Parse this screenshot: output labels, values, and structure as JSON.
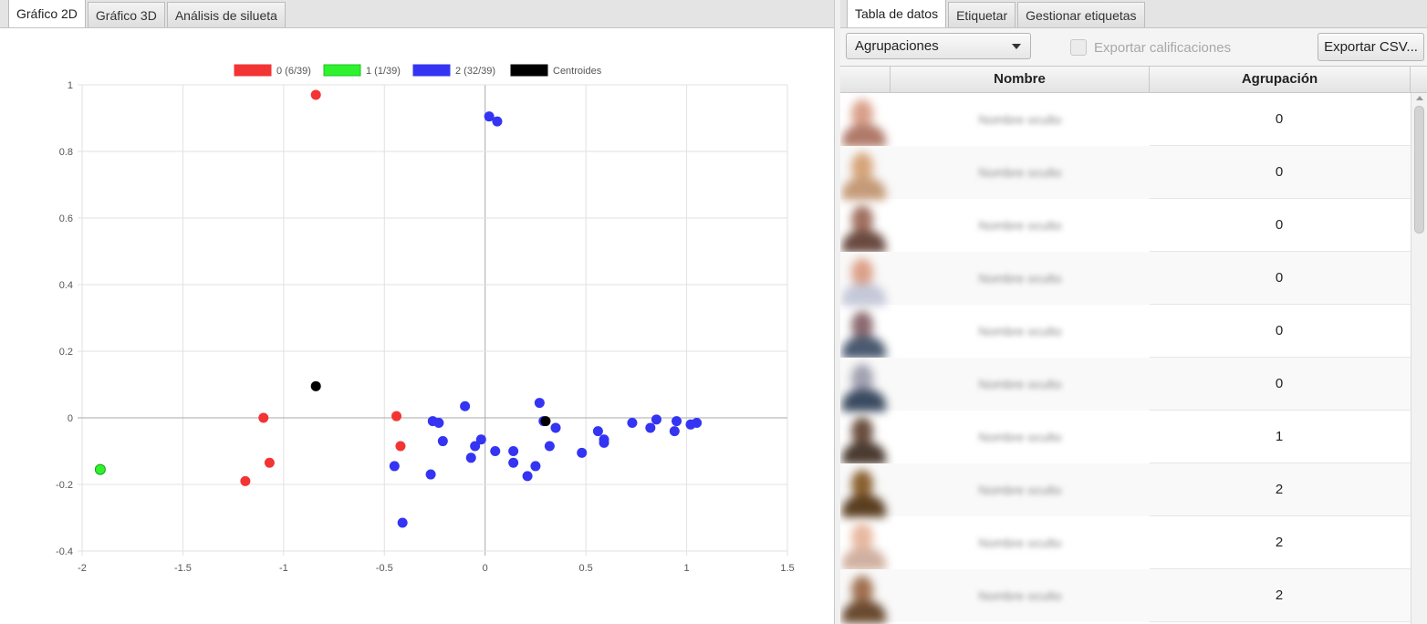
{
  "left_tabs": [
    {
      "label": "Gráfico 2D",
      "active": true
    },
    {
      "label": "Gráfico 3D",
      "active": false
    },
    {
      "label": "Análisis de silueta",
      "active": false
    }
  ],
  "right_tabs": [
    {
      "label": "Tabla de datos",
      "active": true
    },
    {
      "label": "Etiquetar",
      "active": false
    },
    {
      "label": "Gestionar etiquetas",
      "active": false
    }
  ],
  "toolbar": {
    "combo_value": "Agrupaciones",
    "checkbox_label": "Exportar calificaciones",
    "export_button": "Exportar CSV..."
  },
  "table": {
    "columns": [
      "",
      "Nombre",
      "Agrupación"
    ],
    "rows": [
      {
        "name": "Nombre oculto",
        "group": "0"
      },
      {
        "name": "Nombre oculto",
        "group": "0"
      },
      {
        "name": "Nombre oculto",
        "group": "0"
      },
      {
        "name": "Nombre oculto",
        "group": "0"
      },
      {
        "name": "Nombre oculto",
        "group": "0"
      },
      {
        "name": "Nombre oculto",
        "group": "0"
      },
      {
        "name": "Nombre oculto",
        "group": "1"
      },
      {
        "name": "Nombre oculto",
        "group": "2"
      },
      {
        "name": "Nombre oculto",
        "group": "2"
      },
      {
        "name": "Nombre oculto",
        "group": "2"
      }
    ]
  },
  "colors": {
    "cluster0": "#f23434",
    "cluster1": "#2ef22e",
    "cluster2": "#3434f2",
    "centroid": "#000000"
  },
  "chart_data": {
    "type": "scatter",
    "title": "",
    "xlabel": "",
    "ylabel": "",
    "xlim": [
      -2,
      1.5
    ],
    "ylim": [
      -0.4,
      1
    ],
    "xticks": [
      "-2",
      "-1.5",
      "-1",
      "-0.5",
      "0",
      "0.5",
      "1",
      "1.5"
    ],
    "yticks": [
      "1",
      "0.8",
      "0.6",
      "0.4",
      "0.2",
      "0",
      "-0.2",
      "-0.4"
    ],
    "grid": true,
    "legend_position": "top",
    "series": [
      {
        "name": "0 (6/39)",
        "color": "#f23434",
        "points": [
          [
            -0.84,
            0.97
          ],
          [
            -1.1,
            0.0
          ],
          [
            -1.07,
            -0.135
          ],
          [
            -1.19,
            -0.19
          ],
          [
            -0.44,
            0.005
          ],
          [
            -0.42,
            -0.085
          ]
        ]
      },
      {
        "name": "1 (1/39)",
        "color": "#2ef22e",
        "points": [
          [
            -1.91,
            -0.155
          ]
        ]
      },
      {
        "name": "2 (32/39)",
        "color": "#3434f2",
        "points": [
          [
            0.02,
            0.905
          ],
          [
            0.06,
            0.89
          ],
          [
            -0.1,
            0.035
          ],
          [
            0.27,
            0.045
          ],
          [
            -0.26,
            -0.01
          ],
          [
            -0.23,
            -0.015
          ],
          [
            -0.21,
            -0.07
          ],
          [
            -0.05,
            -0.085
          ],
          [
            -0.02,
            -0.065
          ],
          [
            -0.07,
            -0.12
          ],
          [
            0.05,
            -0.1
          ],
          [
            0.14,
            -0.1
          ],
          [
            0.14,
            -0.135
          ],
          [
            0.21,
            -0.175
          ],
          [
            0.25,
            -0.145
          ],
          [
            0.32,
            -0.085
          ],
          [
            0.35,
            -0.03
          ],
          [
            0.48,
            -0.105
          ],
          [
            0.56,
            -0.04
          ],
          [
            0.59,
            -0.065
          ],
          [
            0.59,
            -0.075
          ],
          [
            0.73,
            -0.015
          ],
          [
            0.82,
            -0.03
          ],
          [
            0.85,
            -0.005
          ],
          [
            0.94,
            -0.04
          ],
          [
            0.95,
            -0.01
          ],
          [
            1.02,
            -0.02
          ],
          [
            1.05,
            -0.015
          ],
          [
            -0.45,
            -0.145
          ],
          [
            -0.27,
            -0.17
          ],
          [
            -0.41,
            -0.315
          ],
          [
            0.29,
            -0.01
          ]
        ]
      },
      {
        "name": "Centroides",
        "color": "#000000",
        "points": [
          [
            -0.84,
            0.095
          ],
          [
            0.3,
            -0.01
          ]
        ]
      }
    ]
  }
}
